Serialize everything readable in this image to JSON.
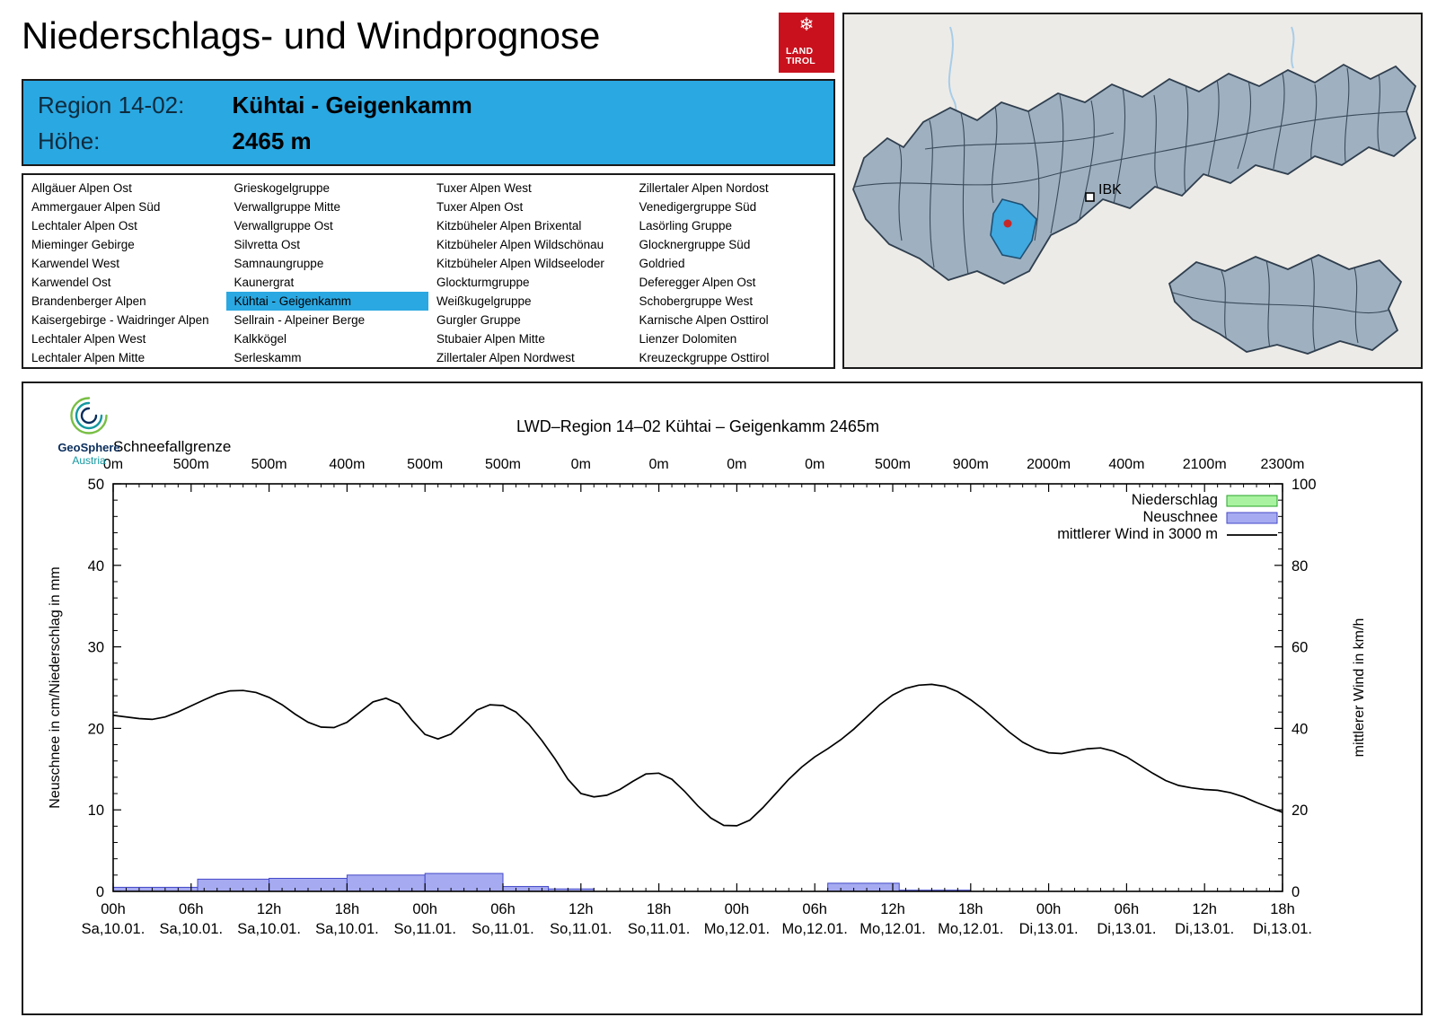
{
  "page": {
    "title": "Niederschlags- und Windprognose"
  },
  "land_tirol_logo": {
    "line1": "LAND",
    "line2": "TIROL"
  },
  "map": {
    "ibk_label": "IBK"
  },
  "region_header": {
    "region_label": "Region 14-02:",
    "region_value": "Kühtai - Geigenkamm",
    "altitude_label": "Höhe:",
    "altitude_value": "2465 m"
  },
  "region_list": {
    "selected": "Kühtai - Geigenkamm",
    "columns": [
      [
        "Allgäuer Alpen Ost",
        "Ammergauer Alpen Süd",
        "Lechtaler Alpen Ost",
        "Mieminger Gebirge",
        "Karwendel West",
        "Karwendel Ost",
        "Brandenberger Alpen",
        "Kaisergebirge - Waidringer Alpen",
        "Lechtaler Alpen West",
        "Lechtaler Alpen Mitte"
      ],
      [
        "Grieskogelgruppe",
        "Verwallgruppe Mitte",
        "Verwallgruppe Ost",
        "Silvretta Ost",
        "Samnaungruppe",
        "Kaunergrat",
        "Kühtai - Geigenkamm",
        "Sellrain - Alpeiner Berge",
        "Kalkkögel",
        "Serleskamm"
      ],
      [
        "Tuxer Alpen West",
        "Tuxer Alpen Ost",
        "Kitzbüheler Alpen Brixental",
        "Kitzbüheler Alpen Wildschönau",
        "Kitzbüheler Alpen Wildseeloder",
        "Glockturmgruppe",
        "Weißkugelgruppe",
        "Gurgler Gruppe",
        "Stubaier Alpen Mitte",
        "Zillertaler Alpen Nordwest"
      ],
      [
        "Zillertaler Alpen Nordost",
        "Venedigergruppe Süd",
        "Lasörling Gruppe",
        "Glocknergruppe Süd",
        "Goldried",
        "Deferegger Alpen Ost",
        "Schobergruppe West",
        "Karnische Alpen Osttirol",
        "Lienzer Dolomiten",
        "Kreuzeckgruppe Osttirol"
      ]
    ]
  },
  "geosphere_logo": {
    "line1": "GeoSphere",
    "line2": "Austria"
  },
  "chart_data": {
    "type": "line+bar",
    "title": "LWD–Region 14–02 Kühtai – Geigenkamm 2465m",
    "top_axis_label": "Schneefallgrenze",
    "top_axis_values": [
      "0m",
      "500m",
      "500m",
      "400m",
      "500m",
      "500m",
      "0m",
      "0m",
      "0m",
      "0m",
      "500m",
      "900m",
      "2000m",
      "400m",
      "2100m",
      "2300m"
    ],
    "ylabel_left": "Neuschnee in cm/Niederschlag in mm",
    "ylabel_right": "mittlerer Wind in km/h",
    "ylim_left": [
      0,
      50
    ],
    "ylim_right": [
      0,
      100
    ],
    "x_hours_range": [
      0,
      90
    ],
    "x_ticks": [
      {
        "hour": 0,
        "time": "00h",
        "date": "Sa,10.01."
      },
      {
        "hour": 6,
        "time": "06h",
        "date": "Sa,10.01."
      },
      {
        "hour": 12,
        "time": "12h",
        "date": "Sa,10.01."
      },
      {
        "hour": 18,
        "time": "18h",
        "date": "Sa,10.01."
      },
      {
        "hour": 24,
        "time": "00h",
        "date": "So,11.01."
      },
      {
        "hour": 30,
        "time": "06h",
        "date": "So,11.01."
      },
      {
        "hour": 36,
        "time": "12h",
        "date": "So,11.01."
      },
      {
        "hour": 42,
        "time": "18h",
        "date": "So,11.01."
      },
      {
        "hour": 48,
        "time": "00h",
        "date": "Mo,12.01."
      },
      {
        "hour": 54,
        "time": "06h",
        "date": "Mo,12.01."
      },
      {
        "hour": 60,
        "time": "12h",
        "date": "Mo,12.01."
      },
      {
        "hour": 66,
        "time": "18h",
        "date": "Mo,12.01."
      },
      {
        "hour": 72,
        "time": "00h",
        "date": "Di,13.01."
      },
      {
        "hour": 78,
        "time": "06h",
        "date": "Di,13.01."
      },
      {
        "hour": 84,
        "time": "12h",
        "date": "Di,13.01."
      },
      {
        "hour": 90,
        "time": "18h",
        "date": "Di,13.01."
      }
    ],
    "colors": {
      "niederschlag_fill": "#a9f3a0",
      "niederschlag_border": "#27a527",
      "neuschnee_fill": "#a6aaf0",
      "neuschnee_border": "#4449c8",
      "wind_line": "#000000"
    },
    "legend": [
      {
        "label": "Niederschlag",
        "type": "box",
        "fill": "#a9f3a0",
        "border": "#27a527"
      },
      {
        "label": "Neuschnee",
        "type": "box",
        "fill": "#a6aaf0",
        "border": "#4449c8"
      },
      {
        "label": "mittlerer Wind in 3000 m",
        "type": "line",
        "color": "#000000"
      }
    ],
    "neuschnee_bars": [
      {
        "start": 0,
        "end": 6.5,
        "value": 0.5
      },
      {
        "start": 6.5,
        "end": 12,
        "value": 1.5
      },
      {
        "start": 12,
        "end": 18,
        "value": 1.6
      },
      {
        "start": 18,
        "end": 24,
        "value": 2.0
      },
      {
        "start": 24,
        "end": 30,
        "value": 2.2
      },
      {
        "start": 30,
        "end": 33.5,
        "value": 0.6
      },
      {
        "start": 33.5,
        "end": 37,
        "value": 0.3
      },
      {
        "start": 55,
        "end": 60.5,
        "value": 1.0
      },
      {
        "start": 60.5,
        "end": 66,
        "value": 0.15
      }
    ],
    "niederschlag_bars": [],
    "wind_series": {
      "name": "mittlerer Wind in 3000 m",
      "points": [
        [
          0,
          43.2
        ],
        [
          2,
          42.4
        ],
        [
          3,
          42.2
        ],
        [
          4,
          42.8
        ],
        [
          5,
          44
        ],
        [
          6,
          45.5
        ],
        [
          7,
          47
        ],
        [
          8,
          48.4
        ],
        [
          9,
          49.2
        ],
        [
          10,
          49.3
        ],
        [
          11,
          48.8
        ],
        [
          12,
          47.6
        ],
        [
          13,
          45.8
        ],
        [
          14,
          43.5
        ],
        [
          15,
          41.5
        ],
        [
          16,
          40.3
        ],
        [
          17,
          40.2
        ],
        [
          18,
          41.5
        ],
        [
          19,
          44
        ],
        [
          20,
          46.5
        ],
        [
          21,
          47.4
        ],
        [
          22,
          46
        ],
        [
          23,
          42
        ],
        [
          24,
          38.5
        ],
        [
          25,
          37.4
        ],
        [
          26,
          38.6
        ],
        [
          27,
          41.5
        ],
        [
          28,
          44.5
        ],
        [
          29,
          45.8
        ],
        [
          30,
          45.6
        ],
        [
          31,
          44
        ],
        [
          32,
          41
        ],
        [
          33,
          37
        ],
        [
          34,
          32.5
        ],
        [
          35,
          27.5
        ],
        [
          36,
          24
        ],
        [
          37,
          23.2
        ],
        [
          38,
          23.6
        ],
        [
          39,
          25
        ],
        [
          40,
          27
        ],
        [
          41,
          28.8
        ],
        [
          42,
          29
        ],
        [
          43,
          27.5
        ],
        [
          44,
          24.5
        ],
        [
          45,
          21
        ],
        [
          46,
          18
        ],
        [
          47,
          16.2
        ],
        [
          48,
          16.1
        ],
        [
          49,
          17.5
        ],
        [
          50,
          20.5
        ],
        [
          51,
          24
        ],
        [
          52,
          27.5
        ],
        [
          53,
          30.5
        ],
        [
          54,
          33
        ],
        [
          55,
          35
        ],
        [
          56,
          37.2
        ],
        [
          57,
          39.8
        ],
        [
          58,
          42.8
        ],
        [
          59,
          45.8
        ],
        [
          60,
          48.2
        ],
        [
          61,
          49.8
        ],
        [
          62,
          50.6
        ],
        [
          63,
          50.8
        ],
        [
          64,
          50.3
        ],
        [
          65,
          49
        ],
        [
          66,
          47
        ],
        [
          67,
          44.6
        ],
        [
          68,
          41.8
        ],
        [
          69,
          39
        ],
        [
          70,
          36.6
        ],
        [
          71,
          35
        ],
        [
          72,
          34
        ],
        [
          73,
          33.8
        ],
        [
          74,
          34.4
        ],
        [
          75,
          35
        ],
        [
          76,
          35.2
        ],
        [
          77,
          34.4
        ],
        [
          78,
          33
        ],
        [
          79,
          31
        ],
        [
          80,
          29
        ],
        [
          81,
          27.2
        ],
        [
          82,
          26
        ],
        [
          83,
          25.4
        ],
        [
          84,
          25
        ],
        [
          85,
          24.8
        ],
        [
          86,
          24.2
        ],
        [
          87,
          23.2
        ],
        [
          88,
          21.8
        ],
        [
          89,
          20.6
        ],
        [
          90,
          19.4
        ]
      ]
    }
  }
}
